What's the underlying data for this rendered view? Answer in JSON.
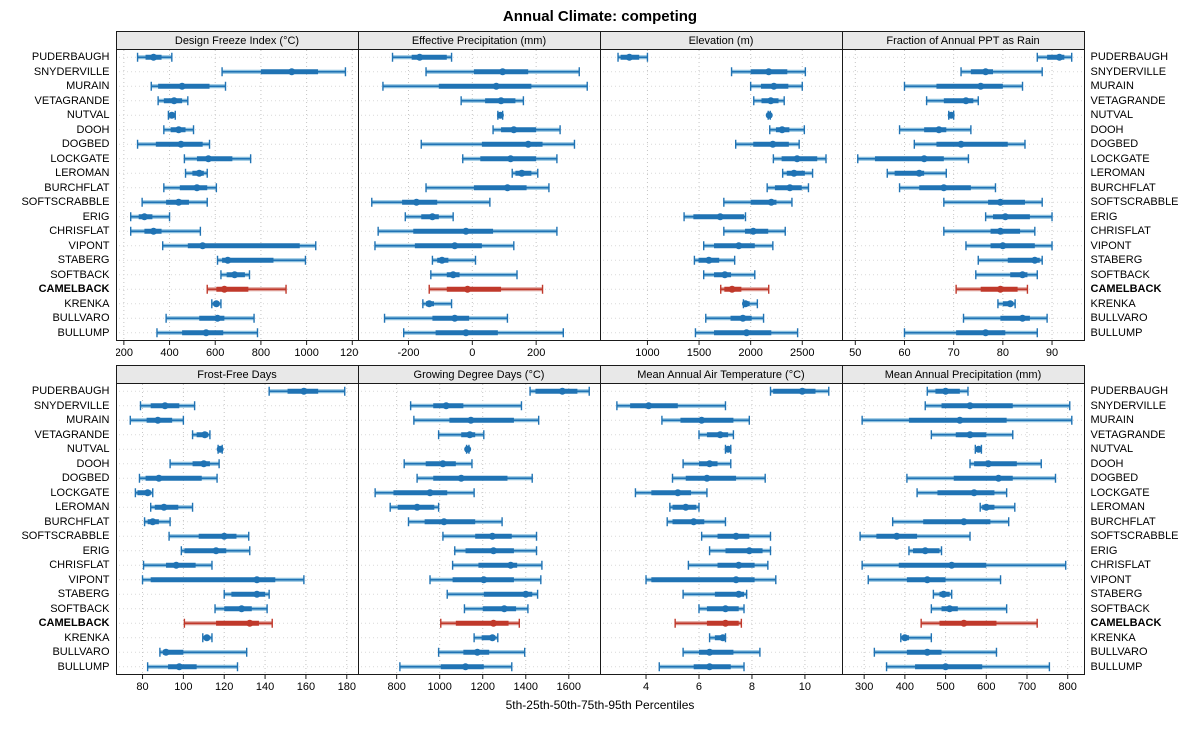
{
  "title": "Annual Climate: competing",
  "caption": "5th-25th-50th-75th-95th Percentiles",
  "percentile_labels": [
    "5th",
    "25th",
    "50th",
    "75th",
    "95th"
  ],
  "highlight_station": "CAMELBACK",
  "colors": {
    "blue_dark": "#2073b4",
    "blue_light": "#8abfde",
    "red_dark": "#c0392b",
    "red_light": "#dd9b94",
    "header_bg": "#e8e8e8",
    "panel_border": "#1a1a1a",
    "gridline": "#c4c4c4",
    "row_guide": "#d9d9d9"
  },
  "stations": [
    "PUDERBAUGH",
    "SNYDERVILLE",
    "MURAIN",
    "VETAGRANDE",
    "NUTVAL",
    "DOOH",
    "DOGBED",
    "LOCKGATE",
    "LEROMAN",
    "BURCHFLAT",
    "SOFTSCRABBLE",
    "ERIG",
    "CHRISFLAT",
    "VIPONT",
    "STABERG",
    "SOFTBACK",
    "CAMELBACK",
    "KRENKA",
    "BULLVARO",
    "BULLUMP"
  ],
  "chart_data": [
    {
      "type": "interval",
      "title": "Design Freeze Index (°C)",
      "xlim": [
        170,
        1225
      ],
      "ticks": [
        200,
        400,
        600,
        800,
        1000,
        1200
      ],
      "values": [
        [
          260,
          295,
          330,
          365,
          410
        ],
        [
          630,
          800,
          935,
          1050,
          1170
        ],
        [
          320,
          350,
          455,
          575,
          645
        ],
        [
          350,
          375,
          420,
          455,
          480
        ],
        [
          395,
          405,
          410,
          420,
          425
        ],
        [
          375,
          405,
          440,
          470,
          505
        ],
        [
          260,
          340,
          450,
          545,
          575
        ],
        [
          465,
          520,
          570,
          675,
          755
        ],
        [
          470,
          500,
          530,
          550,
          565
        ],
        [
          375,
          445,
          520,
          565,
          605
        ],
        [
          280,
          385,
          440,
          485,
          565
        ],
        [
          230,
          265,
          290,
          325,
          400
        ],
        [
          230,
          290,
          330,
          365,
          535
        ],
        [
          370,
          480,
          545,
          970,
          1040
        ],
        [
          610,
          630,
          655,
          855,
          995
        ],
        [
          625,
          650,
          685,
          730,
          750
        ],
        [
          565,
          605,
          640,
          745,
          910
        ],
        [
          585,
          595,
          605,
          615,
          625
        ],
        [
          385,
          530,
          610,
          640,
          770
        ],
        [
          345,
          455,
          560,
          635,
          785
        ]
      ]
    },
    {
      "type": "interval",
      "title": "Effective Precipitation (mm)",
      "xlim": [
        -355,
        400
      ],
      "ticks": [
        -200,
        0,
        200
      ],
      "values": [
        [
          -250,
          -190,
          -165,
          -80,
          -65
        ],
        [
          -145,
          5,
          95,
          175,
          335
        ],
        [
          -280,
          -105,
          75,
          185,
          360
        ],
        [
          -35,
          40,
          90,
          135,
          160
        ],
        [
          80,
          85,
          88,
          92,
          95
        ],
        [
          65,
          90,
          130,
          200,
          275
        ],
        [
          -160,
          30,
          175,
          220,
          320
        ],
        [
          -30,
          25,
          120,
          200,
          265
        ],
        [
          125,
          135,
          155,
          185,
          205
        ],
        [
          -145,
          5,
          110,
          170,
          240
        ],
        [
          -315,
          -220,
          -175,
          -110,
          55
        ],
        [
          -210,
          -160,
          -125,
          -105,
          -60
        ],
        [
          -295,
          -185,
          -20,
          65,
          265
        ],
        [
          -305,
          -180,
          -55,
          30,
          130
        ],
        [
          -125,
          -110,
          -95,
          -75,
          10
        ],
        [
          -130,
          -80,
          -60,
          -40,
          140
        ],
        [
          -135,
          -80,
          -15,
          90,
          220
        ],
        [
          -155,
          -145,
          -135,
          -120,
          -65
        ],
        [
          -275,
          -125,
          -55,
          -10,
          110
        ],
        [
          -215,
          -115,
          -20,
          80,
          285
        ]
      ]
    },
    {
      "type": "interval",
      "title": "Elevation (m)",
      "xlim": [
        550,
        2885
      ],
      "ticks": [
        1000,
        1500,
        2000,
        2500
      ],
      "values": [
        [
          715,
          740,
          825,
          920,
          1000
        ],
        [
          1815,
          2000,
          2175,
          2355,
          2530
        ],
        [
          2000,
          2100,
          2225,
          2365,
          2500
        ],
        [
          2030,
          2105,
          2195,
          2270,
          2325
        ],
        [
          2170,
          2175,
          2180,
          2185,
          2190
        ],
        [
          2185,
          2245,
          2305,
          2375,
          2520
        ],
        [
          1855,
          2025,
          2215,
          2370,
          2470
        ],
        [
          2220,
          2300,
          2450,
          2645,
          2730
        ],
        [
          2310,
          2350,
          2420,
          2525,
          2600
        ],
        [
          2160,
          2235,
          2380,
          2495,
          2560
        ],
        [
          1740,
          2000,
          2200,
          2250,
          2400
        ],
        [
          1355,
          1445,
          1705,
          1935,
          1950
        ],
        [
          1740,
          1945,
          2025,
          2170,
          2335
        ],
        [
          1545,
          1645,
          1885,
          2040,
          2215
        ],
        [
          1455,
          1495,
          1595,
          1695,
          1845
        ],
        [
          1545,
          1645,
          1750,
          1810,
          2040
        ],
        [
          1710,
          1745,
          1820,
          1910,
          2175
        ],
        [
          1930,
          1940,
          1950,
          1990,
          2065
        ],
        [
          1565,
          1805,
          1925,
          2010,
          2125
        ],
        [
          1465,
          1645,
          1960,
          2200,
          2455
        ]
      ]
    },
    {
      "type": "interval",
      "title": "Fraction of Annual PPT as Rain",
      "xlim": [
        47.5,
        96.5
      ],
      "ticks": [
        50,
        60,
        70,
        80,
        90
      ],
      "values": [
        [
          87,
          89,
          91.5,
          92.5,
          94
        ],
        [
          71.5,
          73.5,
          76.5,
          78,
          88
        ],
        [
          60,
          66.5,
          75.5,
          80,
          84
        ],
        [
          64.5,
          68,
          72.5,
          74,
          75
        ],
        [
          69,
          69.2,
          69.5,
          69.8,
          70
        ],
        [
          59,
          64,
          67,
          68.5,
          73.5
        ],
        [
          62,
          66.5,
          71.5,
          81,
          84.5
        ],
        [
          50.5,
          54,
          64,
          68,
          73
        ],
        [
          56.5,
          58,
          63,
          64,
          68.5
        ],
        [
          59,
          63,
          68,
          73.5,
          78.5
        ],
        [
          68,
          77,
          79.5,
          84.5,
          88
        ],
        [
          76.5,
          78,
          80.5,
          85.5,
          90
        ],
        [
          68,
          77.5,
          79.5,
          83.5,
          86.5
        ],
        [
          72.5,
          77.5,
          80,
          86.5,
          90
        ],
        [
          75,
          81,
          86.5,
          87.5,
          88
        ],
        [
          74.5,
          81.5,
          84,
          85,
          87
        ],
        [
          70.5,
          75.5,
          79.5,
          83,
          85
        ],
        [
          79,
          80,
          81.5,
          82,
          82.5
        ],
        [
          72,
          79.5,
          84,
          85.5,
          89
        ],
        [
          60,
          70.5,
          76.5,
          80.5,
          87
        ]
      ]
    },
    {
      "type": "interval",
      "title": "Frost-Free Days",
      "xlim": [
        67.5,
        185.5
      ],
      "ticks": [
        80,
        100,
        120,
        140,
        160,
        180
      ],
      "values": [
        [
          142,
          151,
          159,
          166,
          179
        ],
        [
          79,
          84,
          91,
          98,
          105.5
        ],
        [
          74,
          82,
          87.5,
          94.5,
          100
        ],
        [
          104.5,
          106.5,
          110.5,
          112,
          113
        ],
        [
          117,
          117.5,
          118,
          118.5,
          119
        ],
        [
          93.5,
          104.5,
          110,
          113,
          117.5
        ],
        [
          78.5,
          81.5,
          88,
          109,
          116.5
        ],
        [
          76.5,
          77.5,
          82.5,
          84,
          85
        ],
        [
          84,
          86,
          90.5,
          97.5,
          104.5
        ],
        [
          81,
          82.5,
          85,
          88,
          93.5
        ],
        [
          93,
          107.5,
          120,
          126,
          132
        ],
        [
          99,
          100.5,
          116,
          121,
          132.5
        ],
        [
          80.5,
          91.5,
          96.5,
          106,
          114
        ],
        [
          80,
          84,
          136,
          145,
          159
        ],
        [
          120,
          123.5,
          136,
          140,
          142
        ],
        [
          115.5,
          120,
          128.5,
          133.5,
          141
        ],
        [
          100.5,
          116,
          132.5,
          137,
          143.5
        ],
        [
          109.5,
          110.5,
          111.5,
          112.5,
          114
        ],
        [
          88.5,
          90,
          91.5,
          100,
          131
        ],
        [
          82.5,
          92.5,
          98,
          106.5,
          126.5
        ]
      ]
    },
    {
      "type": "interval",
      "title": "Growing Degree Days (°C)",
      "xlim": [
        625,
        1745
      ],
      "ticks": [
        800,
        1000,
        1200,
        1400,
        1600
      ],
      "values": [
        [
          1420,
          1445,
          1570,
          1640,
          1695
        ],
        [
          865,
          970,
          1030,
          1110,
          1380
        ],
        [
          880,
          1045,
          1145,
          1345,
          1460
        ],
        [
          995,
          1100,
          1140,
          1165,
          1205
        ],
        [
          1125,
          1128,
          1130,
          1133,
          1136
        ],
        [
          835,
          935,
          1015,
          1075,
          1150
        ],
        [
          895,
          970,
          1100,
          1315,
          1430
        ],
        [
          700,
          785,
          955,
          1035,
          1160
        ],
        [
          770,
          805,
          895,
          975,
          995
        ],
        [
          855,
          930,
          1020,
          1165,
          1290
        ],
        [
          1015,
          1165,
          1245,
          1335,
          1450
        ],
        [
          1070,
          1120,
          1250,
          1345,
          1450
        ],
        [
          1060,
          1180,
          1330,
          1360,
          1475
        ],
        [
          955,
          1060,
          1205,
          1345,
          1470
        ],
        [
          1035,
          1205,
          1400,
          1430,
          1455
        ],
        [
          1115,
          1200,
          1300,
          1355,
          1410
        ],
        [
          1005,
          1075,
          1250,
          1320,
          1370
        ],
        [
          1160,
          1195,
          1245,
          1255,
          1270
        ],
        [
          995,
          1110,
          1175,
          1230,
          1395
        ],
        [
          815,
          1005,
          1120,
          1205,
          1335
        ]
      ]
    },
    {
      "type": "interval",
      "title": "Mean Annual Air Temperature (°C)",
      "xlim": [
        2.3,
        11.4
      ],
      "ticks": [
        4,
        6,
        8,
        10
      ],
      "values": [
        [
          8.7,
          8.8,
          9.9,
          10.4,
          10.9
        ],
        [
          2.9,
          3.4,
          4.1,
          5.2,
          7.0
        ],
        [
          4.6,
          5.3,
          6.1,
          7.3,
          7.9
        ],
        [
          6.0,
          6.3,
          6.8,
          7.1,
          7.3
        ],
        [
          7.0,
          7.0,
          7.1,
          7.1,
          7.2
        ],
        [
          5.4,
          6.0,
          6.4,
          6.7,
          7.2
        ],
        [
          5.0,
          5.5,
          6.3,
          7.4,
          8.5
        ],
        [
          3.6,
          4.2,
          5.2,
          5.7,
          6.3
        ],
        [
          4.9,
          5.0,
          5.5,
          5.9,
          6.0
        ],
        [
          4.8,
          5.0,
          5.8,
          6.2,
          7.0
        ],
        [
          6.1,
          6.7,
          7.4,
          7.9,
          8.7
        ],
        [
          6.4,
          7.0,
          7.9,
          8.4,
          8.7
        ],
        [
          5.6,
          6.7,
          7.5,
          8.1,
          8.6
        ],
        [
          4.0,
          4.2,
          7.4,
          8.1,
          8.9
        ],
        [
          5.4,
          6.6,
          7.5,
          7.7,
          7.8
        ],
        [
          6.0,
          6.3,
          7.0,
          7.5,
          7.7
        ],
        [
          5.1,
          6.3,
          7.0,
          7.5,
          7.6
        ],
        [
          6.4,
          6.6,
          6.9,
          7.0,
          7.0
        ],
        [
          5.4,
          6.0,
          6.4,
          7.3,
          8.3
        ],
        [
          4.5,
          5.8,
          6.4,
          7.2,
          7.7
        ]
      ]
    },
    {
      "type": "interval",
      "title": "Mean Annual Precipitation (mm)",
      "xlim": [
        248,
        840
      ],
      "ticks": [
        300,
        400,
        500,
        600,
        700,
        800
      ],
      "values": [
        [
          455,
          475,
          500,
          535,
          555
        ],
        [
          450,
          490,
          560,
          665,
          805
        ],
        [
          295,
          410,
          535,
          650,
          810
        ],
        [
          465,
          525,
          560,
          600,
          665
        ],
        [
          573,
          578,
          581,
          584,
          588
        ],
        [
          560,
          570,
          605,
          675,
          735
        ],
        [
          405,
          520,
          630,
          665,
          770
        ],
        [
          430,
          480,
          570,
          620,
          650
        ],
        [
          585,
          590,
          600,
          620,
          670
        ],
        [
          370,
          445,
          545,
          610,
          655
        ],
        [
          290,
          330,
          380,
          430,
          560
        ],
        [
          410,
          420,
          450,
          485,
          490
        ],
        [
          295,
          385,
          515,
          600,
          795
        ],
        [
          310,
          405,
          455,
          500,
          635
        ],
        [
          470,
          485,
          495,
          510,
          515
        ],
        [
          465,
          490,
          510,
          530,
          650
        ],
        [
          440,
          485,
          545,
          625,
          725
        ],
        [
          390,
          395,
          400,
          410,
          465
        ],
        [
          325,
          405,
          455,
          490,
          625
        ],
        [
          355,
          425,
          500,
          590,
          755
        ]
      ]
    }
  ]
}
